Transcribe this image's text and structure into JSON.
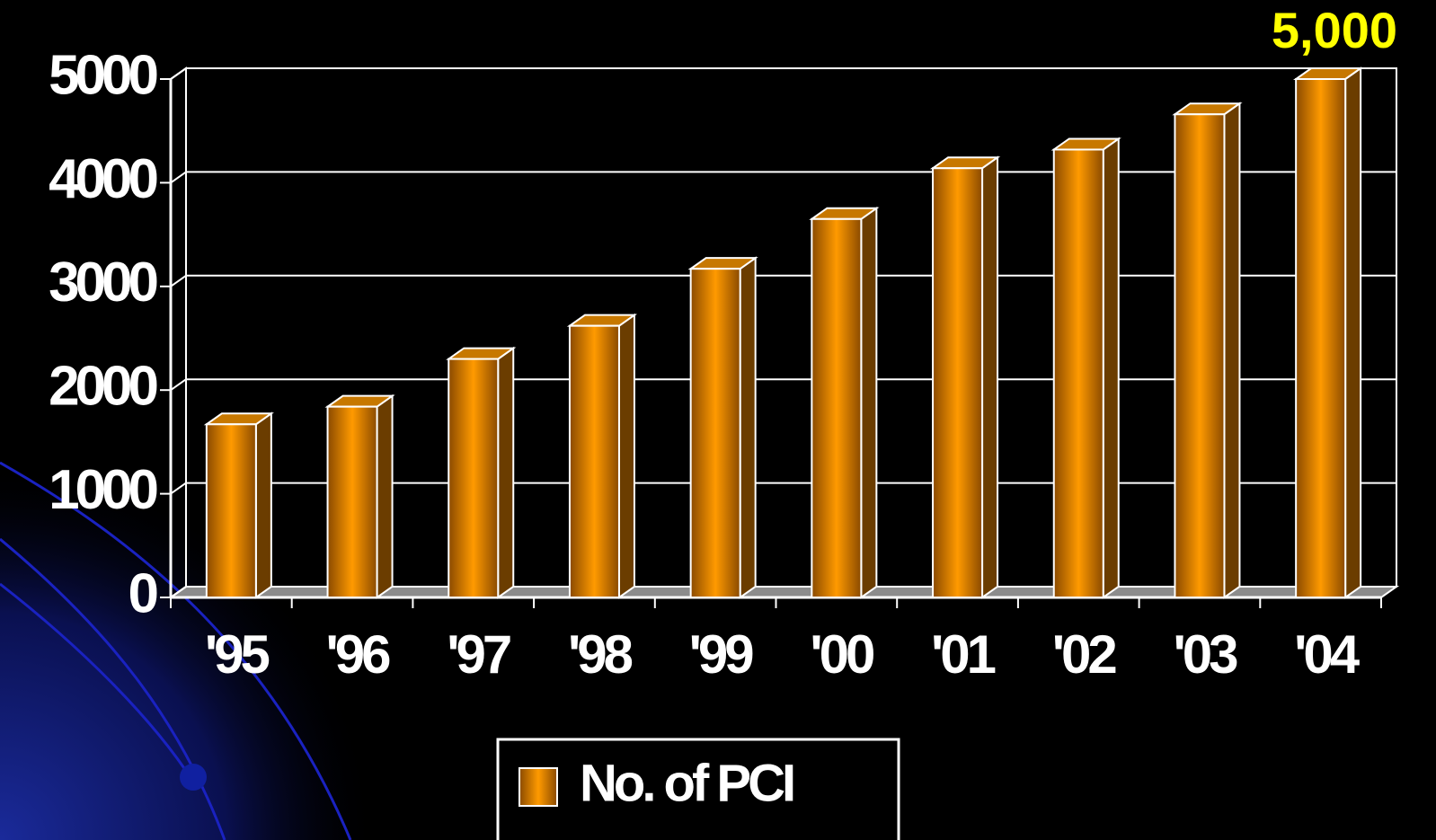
{
  "chart_data": {
    "type": "bar3d",
    "annotation": "5,000",
    "categories": [
      "'95",
      "'96",
      "'97",
      "'98",
      "'99",
      "'00",
      "'01",
      "'02",
      "'03",
      "'04"
    ],
    "series": [
      {
        "name": "No. of PCI",
        "color": "#ff9900",
        "values": [
          1670,
          1840,
          2300,
          2620,
          3170,
          3650,
          4140,
          4320,
          4660,
          5000
        ]
      }
    ],
    "ylim": [
      0,
      5000
    ],
    "yticks": [
      0,
      1000,
      2000,
      3000,
      4000,
      5000
    ],
    "grid": true,
    "legend": "bottom"
  }
}
